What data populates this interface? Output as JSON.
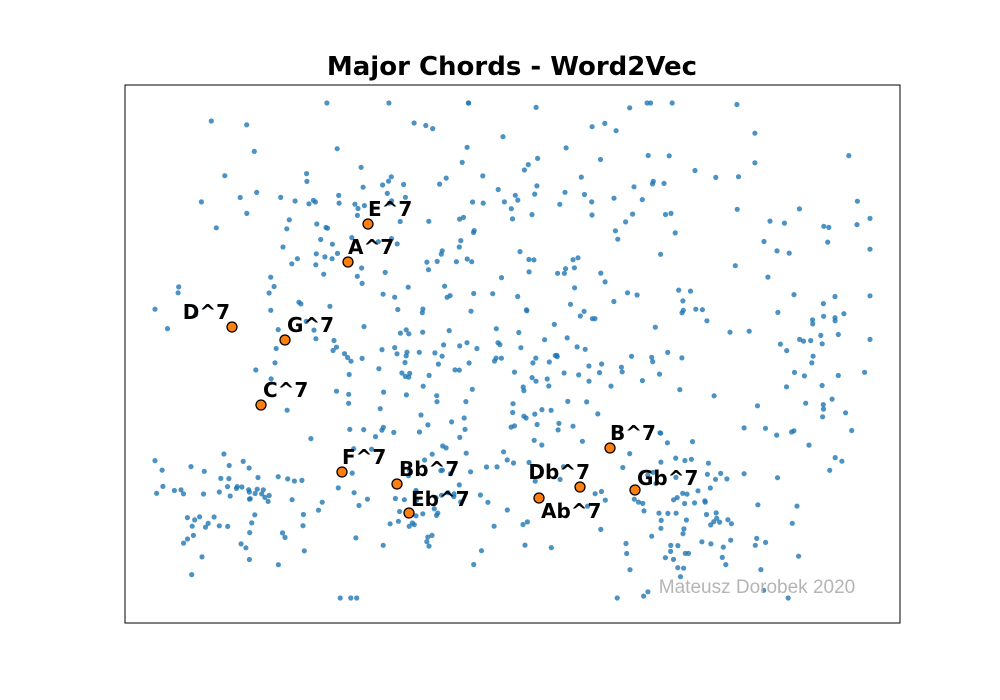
{
  "chart_data": {
    "type": "scatter",
    "title": "Major Chords - Word2Vec",
    "xlabel": "",
    "ylabel": "",
    "xlim": [
      0,
      775
    ],
    "ylim": [
      0,
      538
    ],
    "grid": false,
    "axis_ticks": false,
    "colors": {
      "background": "#1f77b4",
      "highlight": "#ff7f0e",
      "highlight_edge": "#000000",
      "watermark": "#b5b5b5"
    },
    "background_point_count": 620,
    "highlighted": [
      {
        "label": "E^7",
        "x": 243,
        "y": 399
      },
      {
        "label": "A^7",
        "x": 223,
        "y": 361
      },
      {
        "label": "D^7",
        "x": 107,
        "y": 296
      },
      {
        "label": "G^7",
        "x": 160,
        "y": 283
      },
      {
        "label": "C^7",
        "x": 136,
        "y": 218
      },
      {
        "label": "B^7",
        "x": 485,
        "y": 175
      },
      {
        "label": "F^7",
        "x": 217,
        "y": 151
      },
      {
        "label": "Bb^7",
        "x": 272,
        "y": 139
      },
      {
        "label": "Db^7",
        "x": 455,
        "y": 136
      },
      {
        "label": "Gb^7",
        "x": 510,
        "y": 133
      },
      {
        "label": "Ab^7",
        "x": 414,
        "y": 125
      },
      {
        "label": "Eb^7",
        "x": 284,
        "y": 110
      }
    ],
    "watermark": "Mateusz Dorobek 2020"
  }
}
